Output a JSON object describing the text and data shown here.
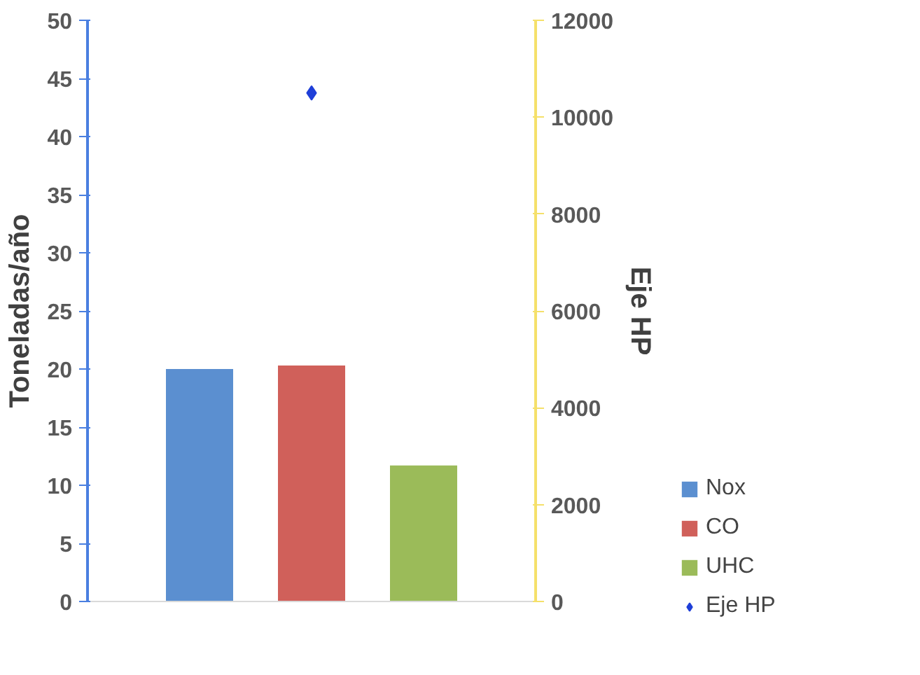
{
  "chart_data": {
    "type": "bar",
    "ylabel": "Toneladas/año",
    "y2label": "Eje HP",
    "categories": [
      null
    ],
    "series": [
      {
        "name": "Nox",
        "color": "#5b8fd0",
        "values": [
          20
        ]
      },
      {
        "name": "CO",
        "color": "#d0605a",
        "values": [
          20.3
        ]
      },
      {
        "name": "UHC",
        "color": "#9bbb59",
        "values": [
          11.7
        ]
      },
      {
        "name": "Eje HP",
        "color": "#1f3fd8",
        "type": "scatter",
        "axis": "y2",
        "marker": "diamond",
        "values": [
          10500
        ]
      }
    ],
    "ylim": [
      0,
      50
    ],
    "yticks": [
      0,
      5,
      10,
      15,
      20,
      25,
      30,
      35,
      40,
      45,
      50
    ],
    "y2lim": [
      0,
      12000
    ],
    "y2ticks": [
      0,
      2000,
      4000,
      6000,
      8000,
      10000,
      12000
    ],
    "grid": false,
    "legend": "bottom right"
  }
}
